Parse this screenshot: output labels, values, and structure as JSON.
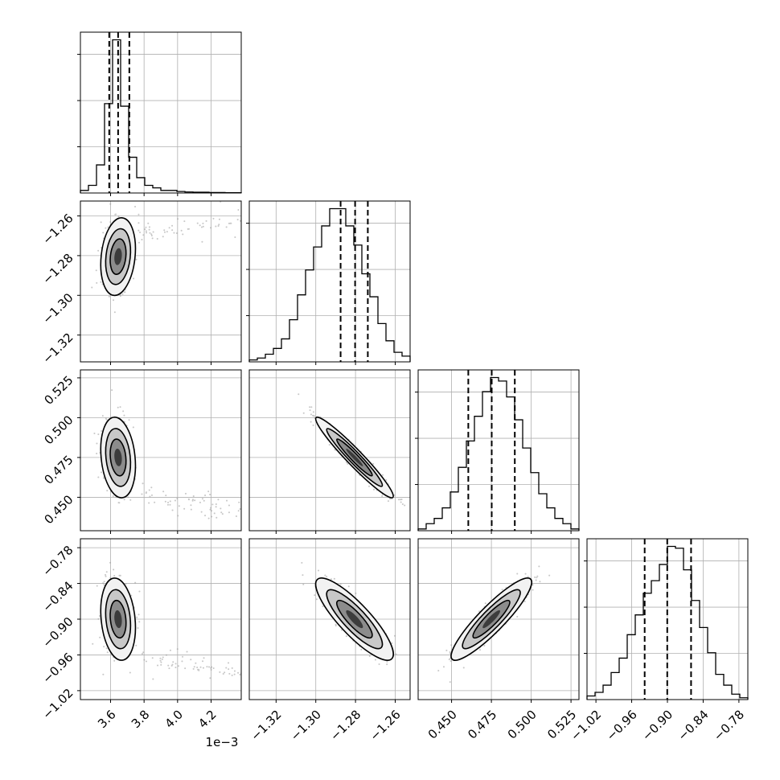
{
  "chart_data": {
    "type": "corner",
    "parameters": 4,
    "grid": true,
    "x_offset_label": "1e−3",
    "quantile_lines": "dashed",
    "axes": [
      {
        "lim": [
          3.42,
          4.38
        ],
        "ticks": [
          3.6,
          3.8,
          4.0,
          4.2
        ],
        "tick_labels": [
          "3.6",
          "3.8",
          "4.0",
          "4.2"
        ]
      },
      {
        "lim": [
          -1.3335,
          -1.2525
        ],
        "ticks": [
          -1.32,
          -1.3,
          -1.28,
          -1.26
        ],
        "tick_labels": [
          "−1.32",
          "−1.30",
          "−1.28",
          "−1.26"
        ]
      },
      {
        "lim": [
          0.429,
          0.53
        ],
        "ticks": [
          0.45,
          0.475,
          0.5,
          0.525
        ],
        "tick_labels": [
          "0.450",
          "0.475",
          "0.500",
          "0.525"
        ]
      },
      {
        "lim": [
          -1.035,
          -0.765
        ],
        "ticks": [
          -1.02,
          -0.96,
          -0.9,
          -0.84,
          -0.78
        ],
        "tick_labels": [
          "−1.02",
          "−0.96",
          "−0.90",
          "−0.84",
          "−0.78"
        ]
      }
    ],
    "histograms": [
      {
        "parameter": 0,
        "bin_edges_range": [
          3.42,
          4.38
        ],
        "counts": [
          1,
          3,
          11,
          35,
          60,
          34,
          14,
          6,
          3,
          2,
          1,
          1,
          0.6,
          0.4,
          0.3,
          0.3,
          0.2,
          0.2,
          0.1,
          0.1
        ],
        "quantiles": [
          3.592,
          3.645,
          3.712
        ]
      },
      {
        "parameter": 1,
        "bin_edges_range": [
          -1.3335,
          -1.2525
        ],
        "counts": [
          1,
          2,
          4,
          7,
          12,
          22,
          35,
          48,
          60,
          71,
          80,
          80,
          71,
          61,
          46,
          34,
          20,
          11,
          5,
          3
        ],
        "quantiles": [
          -1.2875,
          -1.2802,
          -1.2738
        ]
      },
      {
        "parameter": 2,
        "bin_edges_range": [
          0.429,
          0.53
        ],
        "counts": [
          1,
          4,
          7,
          13,
          22,
          36,
          51,
          65,
          79,
          87,
          85,
          76,
          63,
          47,
          33,
          21,
          13,
          7,
          4,
          1
        ],
        "quantiles": [
          0.4605,
          0.4752,
          0.4897
        ]
      },
      {
        "parameter": 3,
        "bin_edges_range": [
          -1.035,
          -0.765
        ],
        "counts": [
          2,
          4,
          8,
          15,
          23,
          36,
          47,
          59,
          66,
          75,
          85,
          84,
          72,
          55,
          40,
          26,
          14,
          8,
          3,
          1
        ],
        "quantiles": [
          -0.9382,
          -0.9003,
          -0.8603
        ]
      }
    ],
    "scatter_2d": [
      {
        "x": 0,
        "y": 1,
        "mean": [
          3.645,
          -1.2805
        ],
        "sd": [
          0.045,
          0.0085
        ],
        "corr": 0.2,
        "tail": "upper-right"
      },
      {
        "x": 0,
        "y": 2,
        "mean": [
          3.645,
          0.475
        ],
        "sd": [
          0.045,
          0.011
        ],
        "corr": -0.2,
        "tail": "lower-right"
      },
      {
        "x": 1,
        "y": 2,
        "mean": [
          -1.2805,
          0.475
        ],
        "sd": [
          0.0085,
          0.011
        ],
        "corr": -0.96
      },
      {
        "x": 0,
        "y": 3,
        "mean": [
          3.645,
          -0.9
        ],
        "sd": [
          0.045,
          0.03
        ],
        "corr": -0.2,
        "tail": "lower-right"
      },
      {
        "x": 1,
        "y": 3,
        "mean": [
          -1.2805,
          -0.9
        ],
        "sd": [
          0.0085,
          0.03
        ],
        "corr": -0.85
      },
      {
        "x": 2,
        "y": 3,
        "mean": [
          0.475,
          -0.9
        ],
        "sd": [
          0.011,
          0.03
        ],
        "corr": 0.9
      }
    ]
  }
}
